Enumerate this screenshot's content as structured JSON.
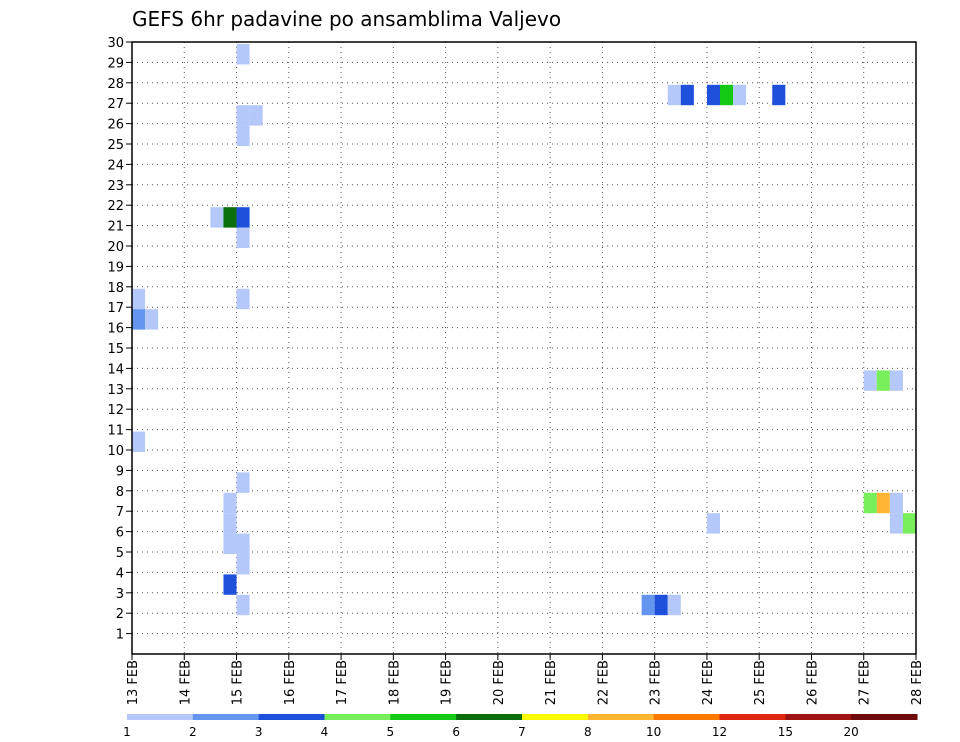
{
  "chart_data": {
    "type": "heatmap",
    "title": "GEFS 6hr padavine po ansamblima Valjevo",
    "xlabel": "",
    "ylabel": "",
    "x_range": [
      0,
      15
    ],
    "x_ticks": [
      {
        "x": 0,
        "label": "13 FEB"
      },
      {
        "x": 1,
        "label": "14 FEB"
      },
      {
        "x": 2,
        "label": "15 FEB"
      },
      {
        "x": 3,
        "label": "16 FEB"
      },
      {
        "x": 4,
        "label": "17 FEB"
      },
      {
        "x": 5,
        "label": "18 FEB"
      },
      {
        "x": 6,
        "label": "19 FEB"
      },
      {
        "x": 7,
        "label": "20 FEB"
      },
      {
        "x": 8,
        "label": "21 FEB"
      },
      {
        "x": 9,
        "label": "22 FEB"
      },
      {
        "x": 10,
        "label": "23 FEB"
      },
      {
        "x": 11,
        "label": "24 FEB"
      },
      {
        "x": 12,
        "label": "25 FEB"
      },
      {
        "x": 13,
        "label": "26 FEB"
      },
      {
        "x": 14,
        "label": "27 FEB"
      },
      {
        "x": 15,
        "label": "28 FEB"
      }
    ],
    "y_range": [
      0,
      30
    ],
    "y_ticks": [
      "1",
      "2",
      "3",
      "4",
      "5",
      "6",
      "7",
      "8",
      "9",
      "10",
      "11",
      "12",
      "13",
      "14",
      "15",
      "16",
      "17",
      "18",
      "19",
      "20",
      "21",
      "22",
      "23",
      "24",
      "25",
      "26",
      "27",
      "28",
      "29",
      "30"
    ],
    "grid": true,
    "colorbar": {
      "boundaries": [
        "1",
        "2",
        "3",
        "4",
        "5",
        "6",
        "7",
        "8",
        "10",
        "12",
        "15",
        "20"
      ],
      "colors": [
        "#b4c8fa",
        "#6496f0",
        "#1e50dc",
        "#78ee5a",
        "#14c814",
        "#0a6e0a",
        "#fafa00",
        "#ffb432",
        "#ff7800",
        "#e02810",
        "#a01414",
        "#6e0a0a"
      ]
    },
    "cells": [
      {
        "day": 2.0,
        "member": 29,
        "level": 1
      },
      {
        "day": 2.0,
        "member": 26,
        "level": 1
      },
      {
        "day": 2.25,
        "member": 26,
        "level": 1
      },
      {
        "day": 2.0,
        "member": 25,
        "level": 1
      },
      {
        "day": 1.5,
        "member": 21,
        "level": 1
      },
      {
        "day": 1.75,
        "member": 21,
        "level": 6
      },
      {
        "day": 2.0,
        "member": 21,
        "level": 3
      },
      {
        "day": 2.0,
        "member": 20,
        "level": 1
      },
      {
        "day": 0.0,
        "member": 17,
        "level": 1
      },
      {
        "day": 2.0,
        "member": 17,
        "level": 1
      },
      {
        "day": 0.0,
        "member": 16,
        "level": 2
      },
      {
        "day": 0.25,
        "member": 16,
        "level": 1
      },
      {
        "day": 0.0,
        "member": 10,
        "level": 1
      },
      {
        "day": 2.0,
        "member": 8,
        "level": 1
      },
      {
        "day": 1.75,
        "member": 7,
        "level": 1
      },
      {
        "day": 1.75,
        "member": 6,
        "level": 1
      },
      {
        "day": 1.75,
        "member": 5,
        "level": 1
      },
      {
        "day": 2.0,
        "member": 5,
        "level": 1
      },
      {
        "day": 2.0,
        "member": 4,
        "level": 1
      },
      {
        "day": 1.75,
        "member": 3,
        "level": 3
      },
      {
        "day": 2.0,
        "member": 2,
        "level": 1
      },
      {
        "day": 10.25,
        "member": 27,
        "level": 1
      },
      {
        "day": 10.5,
        "member": 27,
        "level": 3
      },
      {
        "day": 11.0,
        "member": 27,
        "level": 3
      },
      {
        "day": 11.25,
        "member": 27,
        "level": 5
      },
      {
        "day": 11.5,
        "member": 27,
        "level": 1
      },
      {
        "day": 12.25,
        "member": 27,
        "level": 3
      },
      {
        "day": 9.75,
        "member": 2,
        "level": 2
      },
      {
        "day": 10.0,
        "member": 2,
        "level": 3
      },
      {
        "day": 10.25,
        "member": 2,
        "level": 1
      },
      {
        "day": 11.0,
        "member": 6,
        "level": 1
      },
      {
        "day": 14.0,
        "member": 13,
        "level": 1
      },
      {
        "day": 14.25,
        "member": 13,
        "level": 4
      },
      {
        "day": 14.5,
        "member": 13,
        "level": 1
      },
      {
        "day": 14.0,
        "member": 7,
        "level": 4
      },
      {
        "day": 14.25,
        "member": 7,
        "level": 8
      },
      {
        "day": 14.5,
        "member": 7,
        "level": 1
      },
      {
        "day": 14.5,
        "member": 6,
        "level": 1
      },
      {
        "day": 14.75,
        "member": 6,
        "level": 4
      }
    ]
  }
}
